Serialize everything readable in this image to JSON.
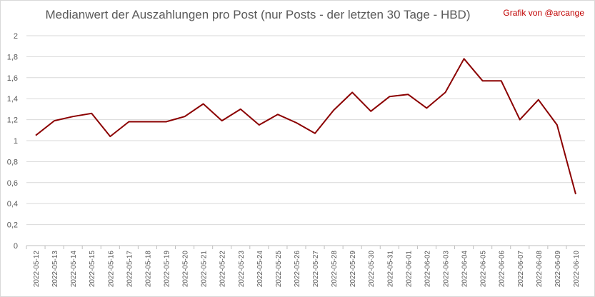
{
  "chart_data": {
    "type": "line",
    "title": "Medianwert der Auszahlungen pro Post (nur Posts - der letzten 30 Tage - HBD)",
    "credit": "Grafik von @arcange",
    "xlabel": "",
    "ylabel": "",
    "ylim": [
      0,
      2
    ],
    "yticks": [
      "0",
      "0,2",
      "0,4",
      "0,6",
      "0,8",
      "1",
      "1,2",
      "1,4",
      "1,6",
      "1,8",
      "2"
    ],
    "grid": true,
    "legend": "none",
    "line_color": "#8b0000",
    "categories": [
      "2022-05-12",
      "2022-05-13",
      "2022-05-14",
      "2022-05-15",
      "2022-05-16",
      "2022-05-17",
      "2022-05-18",
      "2022-05-19",
      "2022-05-20",
      "2022-05-21",
      "2022-05-22",
      "2022-05-23",
      "2022-05-24",
      "2022-05-25",
      "2022-05-26",
      "2022-05-27",
      "2022-05-28",
      "2022-05-29",
      "2022-05-30",
      "2022-05-31",
      "2022-06-01",
      "2022-06-02",
      "2022-06-03",
      "2022-06-04",
      "2022-06-05",
      "2022-06-06",
      "2022-06-07",
      "2022-06-08",
      "2022-06-09",
      "2022-06-10"
    ],
    "values": [
      1.05,
      1.19,
      1.23,
      1.26,
      1.04,
      1.18,
      1.18,
      1.18,
      1.23,
      1.35,
      1.19,
      1.3,
      1.15,
      1.25,
      1.17,
      1.07,
      1.29,
      1.46,
      1.28,
      1.42,
      1.44,
      1.31,
      1.46,
      1.78,
      1.57,
      1.57,
      1.2,
      1.39,
      1.15,
      0.49
    ]
  }
}
